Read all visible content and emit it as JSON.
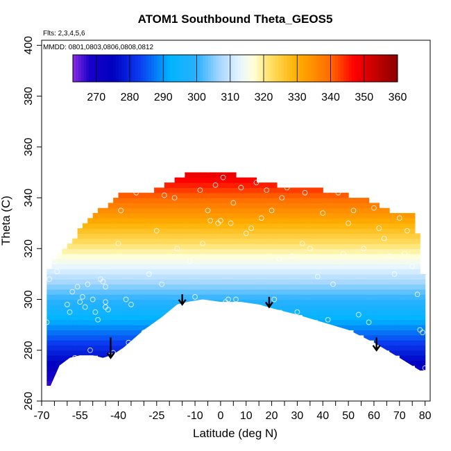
{
  "chart_data": {
    "type": "heatmap",
    "title": "ATOM1 Southbound Theta_GEOS5",
    "subtitle_flights": "Flts: 2,3,4,5,6",
    "subtitle_dates": "MMDD: 0801,0803,0806,0808,0812",
    "xlabel": "Latitude (deg N)",
    "ylabel": "Theta (C)",
    "xlim": [
      -70,
      82
    ],
    "ylim": [
      260,
      402
    ],
    "x_ticks": [
      -70,
      -55,
      -40,
      -25,
      -10,
      0,
      10,
      20,
      30,
      40,
      50,
      60,
      70,
      80
    ],
    "x_tick_labels": [
      "-70",
      "-55",
      "-40",
      "-25",
      "-10",
      "0",
      "10",
      "20",
      "30",
      "40",
      "50",
      "60",
      "70",
      "80"
    ],
    "y_ticks": [
      260,
      280,
      300,
      320,
      340,
      360,
      380,
      400
    ],
    "y_tick_labels": [
      "260",
      "280",
      "300",
      "320",
      "340",
      "360",
      "380",
      "400"
    ],
    "colorbar": {
      "range": [
        263,
        360
      ],
      "ticks": [
        270,
        280,
        290,
        300,
        310,
        320,
        330,
        340,
        350,
        360
      ],
      "tick_labels": [
        "270",
        "280",
        "290",
        "300",
        "310",
        "320",
        "330",
        "340",
        "350",
        "360"
      ],
      "color_stops": [
        {
          "value": 263,
          "color": "#8a2be2"
        },
        {
          "value": 268,
          "color": "#1a00c8"
        },
        {
          "value": 275,
          "color": "#0000c0"
        },
        {
          "value": 283,
          "color": "#0a3cf0"
        },
        {
          "value": 292,
          "color": "#00b4ff"
        },
        {
          "value": 300,
          "color": "#2ab0ff"
        },
        {
          "value": 307,
          "color": "#a8d8ff"
        },
        {
          "value": 313,
          "color": "#e8f6ff"
        },
        {
          "value": 317,
          "color": "#ffffd8"
        },
        {
          "value": 322,
          "color": "#ffe066"
        },
        {
          "value": 330,
          "color": "#ffb000"
        },
        {
          "value": 340,
          "color": "#ff6a00"
        },
        {
          "value": 347,
          "color": "#ff0000"
        },
        {
          "value": 354,
          "color": "#c00000"
        },
        {
          "value": 360,
          "color": "#8b0000"
        }
      ]
    },
    "data_domain": {
      "bottom_boundary": [
        [
          -68,
          266
        ],
        [
          -66.5,
          266
        ],
        [
          -63,
          274
        ],
        [
          -59,
          277
        ],
        [
          -55,
          278
        ],
        [
          -50,
          278
        ],
        [
          -46,
          277
        ],
        [
          -43,
          278
        ],
        [
          -41,
          279
        ],
        [
          -38,
          281
        ],
        [
          -30,
          288
        ],
        [
          -23,
          293
        ],
        [
          -17,
          298
        ],
        [
          -13,
          299
        ],
        [
          -7,
          300
        ],
        [
          0,
          299
        ],
        [
          8,
          299
        ],
        [
          15,
          298
        ],
        [
          22,
          296
        ],
        [
          30,
          294
        ],
        [
          40,
          291
        ],
        [
          50,
          288
        ],
        [
          60,
          283
        ],
        [
          70,
          277
        ],
        [
          78,
          272
        ]
      ],
      "top_boundary": [
        [
          -68,
          311
        ],
        [
          -66,
          315
        ],
        [
          -63,
          319
        ],
        [
          -58,
          324
        ],
        [
          -51,
          333
        ],
        [
          -46,
          336
        ],
        [
          -41,
          340
        ],
        [
          -35,
          341
        ],
        [
          -28,
          342
        ],
        [
          -22,
          345
        ],
        [
          -16,
          348
        ],
        [
          -10,
          349
        ],
        [
          -4,
          350
        ],
        [
          0,
          350
        ],
        [
          6,
          348
        ],
        [
          14,
          346
        ],
        [
          22,
          344
        ],
        [
          30,
          343
        ],
        [
          40,
          342
        ],
        [
          50,
          340
        ],
        [
          58,
          338
        ],
        [
          66,
          334
        ],
        [
          71,
          333
        ],
        [
          75,
          332
        ],
        [
          76,
          325
        ],
        [
          79,
          302
        ],
        [
          79.5,
          300
        ]
      ]
    },
    "observation_points": [
      [
        -68,
        291
      ],
      [
        -67,
        308
      ],
      [
        -65,
        315
      ],
      [
        -64,
        311
      ],
      [
        -63,
        317
      ],
      [
        -60,
        298
      ],
      [
        -59,
        295
      ],
      [
        -58,
        303
      ],
      [
        -57,
        277
      ],
      [
        -56,
        305
      ],
      [
        -55,
        299
      ],
      [
        -54,
        301
      ],
      [
        -53,
        297
      ],
      [
        -52,
        306
      ],
      [
        -51,
        280
      ],
      [
        -50,
        300
      ],
      [
        -49,
        295
      ],
      [
        -48,
        292
      ],
      [
        -47,
        308
      ],
      [
        -46,
        307
      ],
      [
        -45,
        305
      ],
      [
        -45,
        299
      ],
      [
        -45,
        297
      ],
      [
        -44,
        296
      ],
      [
        -43,
        278
      ],
      [
        -42,
        279
      ],
      [
        -40,
        322
      ],
      [
        -39,
        335
      ],
      [
        -37,
        300
      ],
      [
        -36,
        283
      ],
      [
        -35,
        298
      ],
      [
        -33,
        342
      ],
      [
        -30,
        287
      ],
      [
        -28,
        310
      ],
      [
        -25,
        327
      ],
      [
        -23,
        306
      ],
      [
        -22,
        341
      ],
      [
        -21,
        293
      ],
      [
        -18,
        340
      ],
      [
        -17,
        320
      ],
      [
        -15,
        349
      ],
      [
        -12,
        315
      ],
      [
        -10,
        301
      ],
      [
        -8,
        343
      ],
      [
        -7,
        322
      ],
      [
        -5,
        335
      ],
      [
        -4,
        331
      ],
      [
        -2,
        345
      ],
      [
        -1,
        330
      ],
      [
        0,
        331
      ],
      [
        1,
        348
      ],
      [
        2,
        299
      ],
      [
        3,
        300
      ],
      [
        4,
        330
      ],
      [
        5,
        338
      ],
      [
        6,
        300
      ],
      [
        8,
        344
      ],
      [
        10,
        326
      ],
      [
        12,
        328
      ],
      [
        14,
        346
      ],
      [
        16,
        332
      ],
      [
        18,
        343
      ],
      [
        20,
        335
      ],
      [
        21,
        300
      ],
      [
        23,
        316
      ],
      [
        24,
        340
      ],
      [
        26,
        344
      ],
      [
        28,
        317
      ],
      [
        30,
        295
      ],
      [
        32,
        322
      ],
      [
        33,
        342
      ],
      [
        35,
        320
      ],
      [
        38,
        309
      ],
      [
        40,
        334
      ],
      [
        42,
        292
      ],
      [
        44,
        306
      ],
      [
        46,
        342
      ],
      [
        48,
        318
      ],
      [
        50,
        330
      ],
      [
        52,
        335
      ],
      [
        54,
        294
      ],
      [
        56,
        320
      ],
      [
        58,
        291
      ],
      [
        60,
        336
      ],
      [
        62,
        328
      ],
      [
        64,
        324
      ],
      [
        66,
        317
      ],
      [
        68,
        310
      ],
      [
        70,
        332
      ],
      [
        72,
        318
      ],
      [
        73,
        327
      ],
      [
        75,
        313
      ],
      [
        77,
        302
      ],
      [
        78,
        288
      ],
      [
        79,
        287
      ],
      [
        80,
        273
      ]
    ],
    "arrows": [
      {
        "lat": -43,
        "theta_start": 285,
        "theta_end": 277
      },
      {
        "lat": -15,
        "theta_start": 302,
        "theta_end": 298
      },
      {
        "lat": 19,
        "theta_start": 301,
        "theta_end": 297
      },
      {
        "lat": 61,
        "theta_start": 285,
        "theta_end": 280
      }
    ]
  }
}
